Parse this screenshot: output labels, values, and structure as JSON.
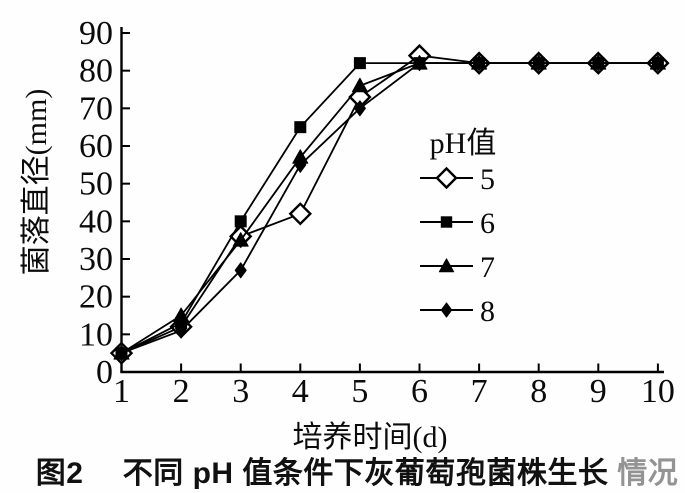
{
  "figure": {
    "caption": {
      "prefix": "图2　",
      "main": "不同 pH 值条件下灰葡萄孢菌株生长",
      "faded_suffix": "情况"
    }
  },
  "chart_data": {
    "type": "line",
    "title": "",
    "xlabel": "培养时间(d)",
    "ylabel": "菌落直径(mm)",
    "legend_title": "pH值",
    "legend_position": "inside-right-middle",
    "grid": false,
    "axis_color": "#000000",
    "line_color": "#000000",
    "x": [
      1,
      2,
      3,
      4,
      5,
      6,
      7,
      8,
      9,
      10
    ],
    "xticks": [
      "1",
      "2",
      "3",
      "4",
      "5",
      "6",
      "7",
      "8",
      "9",
      "10"
    ],
    "yticks": [
      "0",
      "10",
      "20",
      "30",
      "40",
      "50",
      "60",
      "70",
      "80",
      "90"
    ],
    "xlim": [
      1,
      10
    ],
    "ylim": [
      0,
      90
    ],
    "series": [
      {
        "name": "5",
        "marker": "open-diamond",
        "color": "#000000",
        "values": [
          5,
          12,
          36,
          42,
          73,
          84,
          82,
          82,
          82,
          82
        ]
      },
      {
        "name": "6",
        "marker": "filled-square",
        "color": "#000000",
        "values": [
          5,
          13,
          40,
          65,
          82,
          82,
          82,
          82,
          82,
          82
        ]
      },
      {
        "name": "7",
        "marker": "filled-triangle",
        "color": "#000000",
        "values": [
          5,
          15,
          35,
          57,
          76,
          82,
          82,
          82,
          82,
          82
        ]
      },
      {
        "name": "8",
        "marker": "filled-diamond",
        "color": "#000000",
        "values": [
          5,
          11,
          27,
          55,
          70,
          82,
          82,
          82,
          82,
          82
        ]
      }
    ]
  }
}
